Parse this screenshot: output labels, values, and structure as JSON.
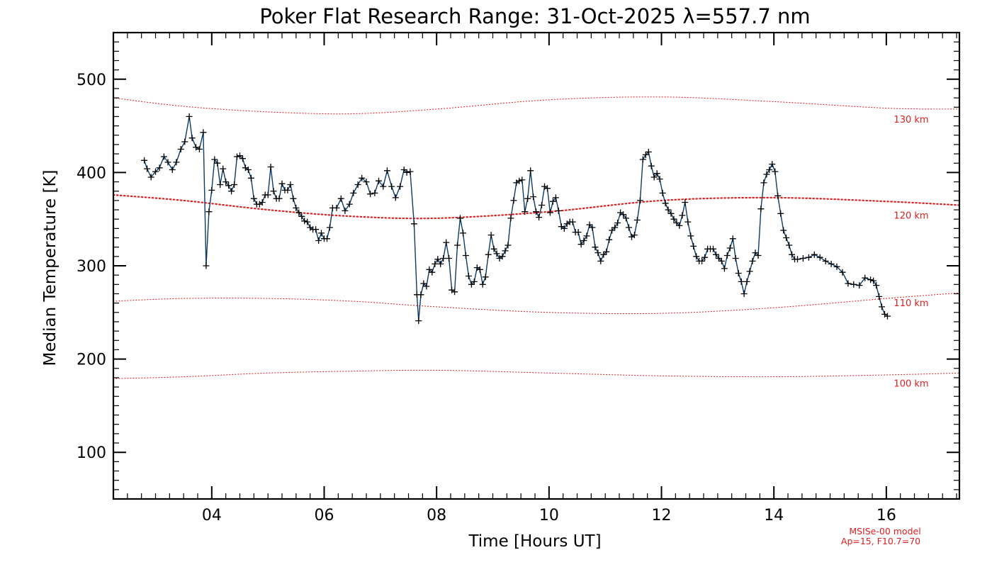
{
  "chart_data": {
    "type": "line",
    "title": "Poker Flat Research Range: 31-Oct-2025 λ=557.7 nm",
    "xlabel": "Time [Hours UT]",
    "ylabel": "Median Temperature [K]",
    "xlim": [
      2.25,
      17.3
    ],
    "ylim": [
      50,
      550
    ],
    "x_ticks": [
      4,
      6,
      8,
      10,
      12,
      14,
      16
    ],
    "x_tick_labels": [
      "04",
      "06",
      "08",
      "10",
      "12",
      "14",
      "16"
    ],
    "y_ticks": [
      100,
      200,
      300,
      400,
      500
    ],
    "y_tick_labels": [
      "100",
      "200",
      "300",
      "400",
      "500"
    ],
    "x_minor_step": 0.25,
    "y_minor_step": 10,
    "colors": {
      "data": "#0d3b66",
      "marker": "#000000",
      "model": "#e02020",
      "axes": "#000000"
    },
    "series": [
      {
        "name": "Median Temperature",
        "marker": "plus",
        "points": [
          [
            2.8,
            413
          ],
          [
            2.85,
            404
          ],
          [
            2.92,
            395
          ],
          [
            3.0,
            401
          ],
          [
            3.07,
            405
          ],
          [
            3.15,
            417
          ],
          [
            3.22,
            411
          ],
          [
            3.3,
            403
          ],
          [
            3.37,
            411
          ],
          [
            3.45,
            425
          ],
          [
            3.52,
            433
          ],
          [
            3.6,
            460
          ],
          [
            3.65,
            437
          ],
          [
            3.72,
            427
          ],
          [
            3.78,
            425
          ],
          [
            3.85,
            443
          ],
          [
            3.9,
            300
          ],
          [
            3.95,
            358
          ],
          [
            4.0,
            381
          ],
          [
            4.05,
            414
          ],
          [
            4.1,
            410
          ],
          [
            4.15,
            387
          ],
          [
            4.2,
            404
          ],
          [
            4.25,
            390
          ],
          [
            4.3,
            386
          ],
          [
            4.35,
            380
          ],
          [
            4.4,
            387
          ],
          [
            4.45,
            417
          ],
          [
            4.5,
            418
          ],
          [
            4.55,
            415
          ],
          [
            4.6,
            405
          ],
          [
            4.65,
            403
          ],
          [
            4.7,
            394
          ],
          [
            4.75,
            372
          ],
          [
            4.8,
            366
          ],
          [
            4.85,
            366
          ],
          [
            4.9,
            368
          ],
          [
            4.95,
            376
          ],
          [
            5.0,
            376
          ],
          [
            5.05,
            406
          ],
          [
            5.1,
            380
          ],
          [
            5.15,
            372
          ],
          [
            5.2,
            372
          ],
          [
            5.25,
            388
          ],
          [
            5.3,
            381
          ],
          [
            5.35,
            381
          ],
          [
            5.4,
            387
          ],
          [
            5.45,
            372
          ],
          [
            5.5,
            362
          ],
          [
            5.55,
            357
          ],
          [
            5.6,
            353
          ],
          [
            5.65,
            348
          ],
          [
            5.7,
            347
          ],
          [
            5.75,
            341
          ],
          [
            5.8,
            339
          ],
          [
            5.85,
            339
          ],
          [
            5.9,
            327
          ],
          [
            5.95,
            335
          ],
          [
            6.0,
            329
          ],
          [
            6.05,
            329
          ],
          [
            6.1,
            341
          ],
          [
            6.15,
            362
          ],
          [
            6.22,
            362
          ],
          [
            6.3,
            372
          ],
          [
            6.37,
            359
          ],
          [
            6.45,
            366
          ],
          [
            6.52,
            378
          ],
          [
            6.6,
            387
          ],
          [
            6.67,
            394
          ],
          [
            6.75,
            390
          ],
          [
            6.82,
            377
          ],
          [
            6.9,
            378
          ],
          [
            6.97,
            391
          ],
          [
            7.05,
            385
          ],
          [
            7.12,
            402
          ],
          [
            7.2,
            385
          ],
          [
            7.27,
            373
          ],
          [
            7.35,
            385
          ],
          [
            7.42,
            403
          ],
          [
            7.47,
            400
          ],
          [
            7.53,
            401
          ],
          [
            7.6,
            345
          ],
          [
            7.65,
            269
          ],
          [
            7.68,
            241
          ],
          [
            7.72,
            269
          ],
          [
            7.77,
            281
          ],
          [
            7.82,
            278
          ],
          [
            7.87,
            296
          ],
          [
            7.92,
            293
          ],
          [
            7.97,
            302
          ],
          [
            8.02,
            307
          ],
          [
            8.07,
            302
          ],
          [
            8.12,
            308
          ],
          [
            8.17,
            325
          ],
          [
            8.22,
            308
          ],
          [
            8.27,
            274
          ],
          [
            8.32,
            272
          ],
          [
            8.37,
            322
          ],
          [
            8.42,
            351
          ],
          [
            8.47,
            335
          ],
          [
            8.52,
            311
          ],
          [
            8.57,
            289
          ],
          [
            8.62,
            280
          ],
          [
            8.67,
            283
          ],
          [
            8.72,
            298
          ],
          [
            8.77,
            296
          ],
          [
            8.82,
            280
          ],
          [
            8.87,
            288
          ],
          [
            8.92,
            312
          ],
          [
            8.97,
            333
          ],
          [
            9.02,
            318
          ],
          [
            9.07,
            313
          ],
          [
            9.12,
            308
          ],
          [
            9.17,
            310
          ],
          [
            9.22,
            316
          ],
          [
            9.27,
            322
          ],
          [
            9.32,
            351
          ],
          [
            9.37,
            370
          ],
          [
            9.42,
            389
          ],
          [
            9.47,
            391
          ],
          [
            9.52,
            392
          ],
          [
            9.57,
            358
          ],
          [
            9.62,
            372
          ],
          [
            9.67,
            402
          ],
          [
            9.72,
            374
          ],
          [
            9.77,
            358
          ],
          [
            9.82,
            352
          ],
          [
            9.87,
            365
          ],
          [
            9.92,
            385
          ],
          [
            9.97,
            383
          ],
          [
            10.02,
            357
          ],
          [
            10.07,
            369
          ],
          [
            10.12,
            373
          ],
          [
            10.17,
            359
          ],
          [
            10.22,
            342
          ],
          [
            10.27,
            340
          ],
          [
            10.32,
            345
          ],
          [
            10.37,
            347
          ],
          [
            10.42,
            347
          ],
          [
            10.47,
            336
          ],
          [
            10.52,
            336
          ],
          [
            10.57,
            323
          ],
          [
            10.62,
            327
          ],
          [
            10.67,
            332
          ],
          [
            10.72,
            344
          ],
          [
            10.77,
            341
          ],
          [
            10.82,
            320
          ],
          [
            10.87,
            314
          ],
          [
            10.92,
            305
          ],
          [
            10.97,
            312
          ],
          [
            11.02,
            315
          ],
          [
            11.07,
            328
          ],
          [
            11.12,
            338
          ],
          [
            11.17,
            341
          ],
          [
            11.22,
            346
          ],
          [
            11.27,
            357
          ],
          [
            11.32,
            355
          ],
          [
            11.37,
            351
          ],
          [
            11.42,
            341
          ],
          [
            11.47,
            331
          ],
          [
            11.52,
            333
          ],
          [
            11.57,
            349
          ],
          [
            11.62,
            370
          ],
          [
            11.67,
            414
          ],
          [
            11.72,
            419
          ],
          [
            11.77,
            422
          ],
          [
            11.82,
            407
          ],
          [
            11.87,
            395
          ],
          [
            11.92,
            399
          ],
          [
            11.97,
            393
          ],
          [
            12.02,
            378
          ],
          [
            12.07,
            367
          ],
          [
            12.12,
            360
          ],
          [
            12.17,
            356
          ],
          [
            12.22,
            350
          ],
          [
            12.27,
            346
          ],
          [
            12.32,
            343
          ],
          [
            12.37,
            354
          ],
          [
            12.42,
            368
          ],
          [
            12.47,
            347
          ],
          [
            12.52,
            332
          ],
          [
            12.57,
            321
          ],
          [
            12.62,
            310
          ],
          [
            12.67,
            305
          ],
          [
            12.72,
            305
          ],
          [
            12.77,
            309
          ],
          [
            12.82,
            318
          ],
          [
            12.87,
            318
          ],
          [
            12.92,
            318
          ],
          [
            12.97,
            312
          ],
          [
            13.02,
            308
          ],
          [
            13.07,
            305
          ],
          [
            13.12,
            297
          ],
          [
            13.17,
            311
          ],
          [
            13.22,
            319
          ],
          [
            13.27,
            329
          ],
          [
            13.32,
            308
          ],
          [
            13.37,
            292
          ],
          [
            13.42,
            283
          ],
          [
            13.47,
            270
          ],
          [
            13.52,
            283
          ],
          [
            13.57,
            294
          ],
          [
            13.62,
            305
          ],
          [
            13.67,
            314
          ],
          [
            13.72,
            311
          ],
          [
            13.77,
            361
          ],
          [
            13.82,
            389
          ],
          [
            13.87,
            398
          ],
          [
            13.92,
            403
          ],
          [
            13.97,
            409
          ],
          [
            14.02,
            401
          ],
          [
            14.07,
            375
          ],
          [
            14.12,
            356
          ],
          [
            14.17,
            338
          ],
          [
            14.22,
            330
          ],
          [
            14.27,
            322
          ],
          [
            14.32,
            312
          ],
          [
            14.37,
            307
          ],
          [
            14.42,
            307
          ],
          [
            14.52,
            308
          ],
          [
            14.62,
            309
          ],
          [
            14.72,
            312
          ],
          [
            14.82,
            309
          ],
          [
            14.92,
            305
          ],
          [
            15.02,
            302
          ],
          [
            15.12,
            299
          ],
          [
            15.22,
            293
          ],
          [
            15.32,
            281
          ],
          [
            15.42,
            280
          ],
          [
            15.52,
            279
          ],
          [
            15.62,
            287
          ],
          [
            15.72,
            285
          ],
          [
            15.77,
            284
          ],
          [
            15.82,
            279
          ],
          [
            15.87,
            267
          ],
          [
            15.92,
            256
          ],
          [
            15.97,
            248
          ],
          [
            16.02,
            246
          ]
        ]
      }
    ],
    "model_lines": [
      {
        "label": "130 km",
        "values": [
          [
            2.25,
            480
          ],
          [
            3.5,
            471
          ],
          [
            5.0,
            465
          ],
          [
            6.5,
            463
          ],
          [
            8.0,
            468
          ],
          [
            10.0,
            478
          ],
          [
            12.0,
            481
          ],
          [
            14.0,
            476
          ],
          [
            16.0,
            469
          ],
          [
            17.3,
            468
          ]
        ],
        "style": "dotted-thin"
      },
      {
        "label": "120 km",
        "values": [
          [
            2.25,
            376
          ],
          [
            3.5,
            370
          ],
          [
            5.0,
            360
          ],
          [
            6.5,
            353
          ],
          [
            8.0,
            351
          ],
          [
            10.0,
            358
          ],
          [
            12.0,
            370
          ],
          [
            14.0,
            373
          ],
          [
            16.0,
            369
          ],
          [
            17.3,
            365
          ]
        ],
        "style": "dotted-thick"
      },
      {
        "label": "110 km",
        "values": [
          [
            2.25,
            262
          ],
          [
            3.5,
            265
          ],
          [
            5.0,
            265
          ],
          [
            6.5,
            262
          ],
          [
            8.0,
            256
          ],
          [
            10.0,
            250
          ],
          [
            12.0,
            249
          ],
          [
            14.0,
            255
          ],
          [
            16.0,
            265
          ],
          [
            17.3,
            271
          ]
        ],
        "style": "dotted-thin"
      },
      {
        "label": "100 km",
        "values": [
          [
            2.25,
            179
          ],
          [
            3.5,
            181
          ],
          [
            5.0,
            185
          ],
          [
            6.5,
            187
          ],
          [
            8.0,
            188
          ],
          [
            10.0,
            185
          ],
          [
            12.0,
            182
          ],
          [
            14.0,
            181
          ],
          [
            16.0,
            183
          ],
          [
            17.3,
            185
          ]
        ],
        "style": "dotted-thin"
      }
    ],
    "model_note": [
      "MSISe-00 model",
      "Ap=15, F10.7=70"
    ]
  }
}
